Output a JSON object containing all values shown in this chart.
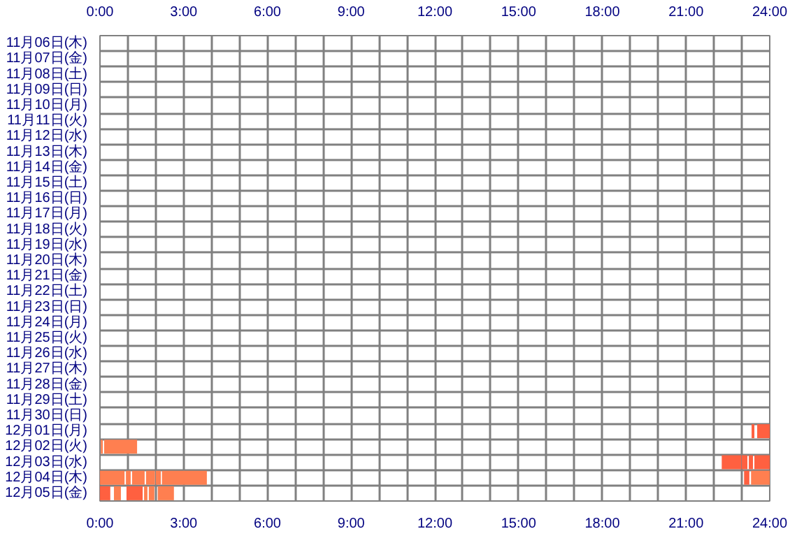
{
  "chart_data": {
    "type": "bar",
    "orientation": "horizontal",
    "grid": true,
    "categories": [
      "11月06日(木)",
      "11月07日(金)",
      "11月08日(土)",
      "11月09日(日)",
      "11月10日(月)",
      "11月11日(火)",
      "11月12日(水)",
      "11月13日(木)",
      "11月14日(金)",
      "11月15日(土)",
      "11月16日(日)",
      "11月17日(月)",
      "11月18日(火)",
      "11月19日(水)",
      "11月20日(木)",
      "11月21日(金)",
      "11月22日(土)",
      "11月23日(日)",
      "11月24日(月)",
      "11月25日(火)",
      "11月26日(水)",
      "11月27日(木)",
      "11月28日(金)",
      "11月29日(土)",
      "11月30日(日)",
      "12月01日(月)",
      "12月02日(火)",
      "12月03日(水)",
      "12月04日(木)",
      "12月05日(金)"
    ],
    "xlim": [
      0,
      24
    ],
    "xticks": [
      {
        "value": 0,
        "label": "0:00"
      },
      {
        "value": 1,
        "label": null
      },
      {
        "value": 2,
        "label": null
      },
      {
        "value": 3,
        "label": "3:00"
      },
      {
        "value": 4,
        "label": null
      },
      {
        "value": 5,
        "label": null
      },
      {
        "value": 6,
        "label": "6:00"
      },
      {
        "value": 7,
        "label": null
      },
      {
        "value": 8,
        "label": null
      },
      {
        "value": 9,
        "label": "9:00"
      },
      {
        "value": 10,
        "label": null
      },
      {
        "value": 11,
        "label": null
      },
      {
        "value": 12,
        "label": "12:00"
      },
      {
        "value": 13,
        "label": null
      },
      {
        "value": 14,
        "label": null
      },
      {
        "value": 15,
        "label": "15:00"
      },
      {
        "value": 16,
        "label": null
      },
      {
        "value": 17,
        "label": null
      },
      {
        "value": 18,
        "label": "18:00"
      },
      {
        "value": 19,
        "label": null
      },
      {
        "value": 20,
        "label": null
      },
      {
        "value": 21,
        "label": "21:00"
      },
      {
        "value": 22,
        "label": null
      },
      {
        "value": 23,
        "label": null
      },
      {
        "value": 24,
        "label": "24:00"
      }
    ],
    "x2lim": [
      0,
      24
    ],
    "x2ticks": [
      {
        "value": 0,
        "label": "0:00"
      },
      {
        "value": 1,
        "label": null
      },
      {
        "value": 2,
        "label": null
      },
      {
        "value": 3,
        "label": "3:00"
      },
      {
        "value": 4,
        "label": null
      },
      {
        "value": 5,
        "label": null
      },
      {
        "value": 6,
        "label": "6:00"
      },
      {
        "value": 7,
        "label": null
      },
      {
        "value": 8,
        "label": null
      },
      {
        "value": 9,
        "label": "9:00"
      },
      {
        "value": 10,
        "label": null
      },
      {
        "value": 11,
        "label": null
      },
      {
        "value": 12,
        "label": "12:00"
      },
      {
        "value": 13,
        "label": null
      },
      {
        "value": 14,
        "label": null
      },
      {
        "value": 15,
        "label": "15:00"
      },
      {
        "value": 16,
        "label": null
      },
      {
        "value": 17,
        "label": null
      },
      {
        "value": 18,
        "label": "18:00"
      },
      {
        "value": 19,
        "label": null
      },
      {
        "value": 20,
        "label": null
      },
      {
        "value": 21,
        "label": "21:00"
      },
      {
        "value": 22,
        "label": null
      },
      {
        "value": 23,
        "label": null
      },
      {
        "value": 24,
        "label": "24:00"
      }
    ],
    "series": [
      {
        "color": "#ff7f50",
        "base": [
          null,
          null,
          null,
          null,
          null,
          null,
          null,
          null,
          null,
          null,
          null,
          null,
          null,
          null,
          null,
          null,
          null,
          null,
          null,
          null,
          null,
          null,
          null,
          null,
          null,
          null,
          0.03,
          null,
          0,
          0.5
        ],
        "values": [
          null,
          null,
          null,
          null,
          null,
          null,
          null,
          null,
          null,
          null,
          null,
          null,
          null,
          null,
          null,
          null,
          null,
          null,
          null,
          null,
          null,
          null,
          null,
          null,
          null,
          null,
          0.07,
          null,
          0.88,
          0.25
        ]
      },
      {
        "color": "#ff7f50",
        "base": [
          null,
          null,
          null,
          null,
          null,
          null,
          null,
          null,
          null,
          null,
          null,
          null,
          null,
          null,
          null,
          null,
          null,
          null,
          null,
          null,
          null,
          null,
          null,
          null,
          null,
          null,
          0.15,
          null,
          0.93,
          1.58
        ],
        "values": [
          null,
          null,
          null,
          null,
          null,
          null,
          null,
          null,
          null,
          null,
          null,
          null,
          null,
          null,
          null,
          null,
          null,
          null,
          null,
          null,
          null,
          null,
          null,
          null,
          null,
          null,
          1.18,
          null,
          0.17,
          0.12
        ]
      },
      {
        "color": "#ff7f50",
        "base": [
          null,
          null,
          null,
          null,
          null,
          null,
          null,
          null,
          null,
          null,
          null,
          null,
          null,
          null,
          null,
          null,
          null,
          null,
          null,
          null,
          null,
          null,
          null,
          null,
          null,
          null,
          null,
          null,
          1.15,
          1.75
        ],
        "values": [
          null,
          null,
          null,
          null,
          null,
          null,
          null,
          null,
          null,
          null,
          null,
          null,
          null,
          null,
          null,
          null,
          null,
          null,
          null,
          null,
          null,
          null,
          null,
          null,
          null,
          null,
          null,
          null,
          0.45,
          0.2
        ]
      },
      {
        "color": "#ff7f50",
        "base": [
          null,
          null,
          null,
          null,
          null,
          null,
          null,
          null,
          null,
          null,
          null,
          null,
          null,
          null,
          null,
          null,
          null,
          null,
          null,
          null,
          null,
          null,
          null,
          null,
          null,
          null,
          null,
          null,
          1.65,
          2.07
        ],
        "values": [
          null,
          null,
          null,
          null,
          null,
          null,
          null,
          null,
          null,
          null,
          null,
          null,
          null,
          null,
          null,
          null,
          null,
          null,
          null,
          null,
          null,
          null,
          null,
          null,
          null,
          null,
          null,
          null,
          0.32,
          0.58
        ]
      },
      {
        "color": "#ff7f50",
        "base": [
          null,
          null,
          null,
          null,
          null,
          null,
          null,
          null,
          null,
          null,
          null,
          null,
          null,
          null,
          null,
          null,
          null,
          null,
          null,
          null,
          null,
          null,
          null,
          null,
          null,
          null,
          null,
          null,
          2.0,
          null
        ],
        "values": [
          null,
          null,
          null,
          null,
          null,
          null,
          null,
          null,
          null,
          null,
          null,
          null,
          null,
          null,
          null,
          null,
          null,
          null,
          null,
          null,
          null,
          null,
          null,
          null,
          null,
          null,
          null,
          null,
          0.18,
          null
        ]
      },
      {
        "color": "#ff7f50",
        "base": [
          null,
          null,
          null,
          null,
          null,
          null,
          null,
          null,
          null,
          null,
          null,
          null,
          null,
          null,
          null,
          null,
          null,
          null,
          null,
          null,
          null,
          null,
          null,
          null,
          null,
          null,
          null,
          null,
          2.22,
          null
        ],
        "values": [
          null,
          null,
          null,
          null,
          null,
          null,
          null,
          null,
          null,
          null,
          null,
          null,
          null,
          null,
          null,
          null,
          null,
          null,
          null,
          null,
          null,
          null,
          null,
          null,
          null,
          null,
          null,
          null,
          1.61,
          null
        ]
      },
      {
        "color": "#ff7f50",
        "base": [
          null,
          null,
          null,
          null,
          null,
          null,
          null,
          null,
          null,
          null,
          null,
          null,
          null,
          null,
          null,
          null,
          null,
          null,
          null,
          null,
          null,
          null,
          null,
          null,
          null,
          null,
          null,
          null,
          23.33,
          null
        ],
        "values": [
          null,
          null,
          null,
          null,
          null,
          null,
          null,
          null,
          null,
          null,
          null,
          null,
          null,
          null,
          null,
          null,
          null,
          null,
          null,
          null,
          null,
          null,
          null,
          null,
          null,
          null,
          null,
          null,
          0.67,
          null
        ]
      },
      {
        "color": "#ff6040",
        "base": [
          null,
          null,
          null,
          null,
          null,
          null,
          null,
          null,
          null,
          null,
          null,
          null,
          null,
          null,
          null,
          null,
          null,
          null,
          null,
          null,
          null,
          null,
          null,
          null,
          null,
          23.35,
          null,
          22.28,
          23.08,
          0
        ],
        "values": [
          null,
          null,
          null,
          null,
          null,
          null,
          null,
          null,
          null,
          null,
          null,
          null,
          null,
          null,
          null,
          null,
          null,
          null,
          null,
          null,
          null,
          null,
          null,
          null,
          null,
          0.1,
          null,
          0.7,
          0.19,
          0.37
        ]
      },
      {
        "color": "#ff6040",
        "base": [
          null,
          null,
          null,
          null,
          null,
          null,
          null,
          null,
          null,
          null,
          null,
          null,
          null,
          null,
          null,
          null,
          null,
          null,
          null,
          null,
          null,
          null,
          null,
          null,
          null,
          23.55,
          null,
          23.0,
          null,
          0.95
        ],
        "values": [
          null,
          null,
          null,
          null,
          null,
          null,
          null,
          null,
          null,
          null,
          null,
          null,
          null,
          null,
          null,
          null,
          null,
          null,
          null,
          null,
          null,
          null,
          null,
          null,
          null,
          0.45,
          null,
          0.2,
          null,
          0.58
        ]
      },
      {
        "color": "#ff6040",
        "base": [
          null,
          null,
          null,
          null,
          null,
          null,
          null,
          null,
          null,
          null,
          null,
          null,
          null,
          null,
          null,
          null,
          null,
          null,
          null,
          null,
          null,
          null,
          null,
          null,
          null,
          null,
          null,
          23.25,
          null,
          null
        ],
        "values": [
          null,
          null,
          null,
          null,
          null,
          null,
          null,
          null,
          null,
          null,
          null,
          null,
          null,
          null,
          null,
          null,
          null,
          null,
          null,
          null,
          null,
          null,
          null,
          null,
          null,
          null,
          null,
          0.15,
          null,
          null
        ]
      },
      {
        "color": "#ff6040",
        "base": [
          null,
          null,
          null,
          null,
          null,
          null,
          null,
          null,
          null,
          null,
          null,
          null,
          null,
          null,
          null,
          null,
          null,
          null,
          null,
          null,
          null,
          null,
          null,
          null,
          null,
          null,
          null,
          23.45,
          null,
          null
        ],
        "values": [
          null,
          null,
          null,
          null,
          null,
          null,
          null,
          null,
          null,
          null,
          null,
          null,
          null,
          null,
          null,
          null,
          null,
          null,
          null,
          null,
          null,
          null,
          null,
          null,
          null,
          null,
          null,
          0.55,
          null,
          null
        ]
      }
    ]
  }
}
